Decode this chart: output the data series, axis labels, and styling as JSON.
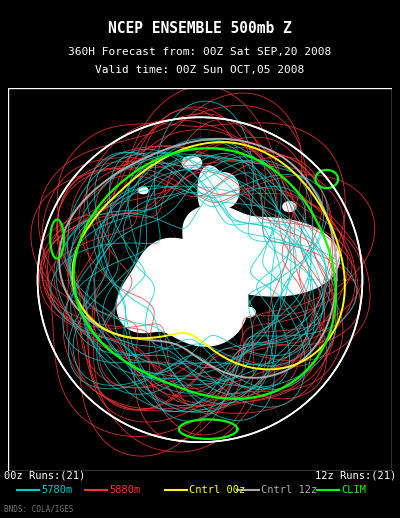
{
  "title_line1": "NCEP ENSEMBLE 500mb Z",
  "title_line2": "360H Forecast from: 00Z Sat SEP,20 2008",
  "title_line3": "Valid time: 00Z Sun OCT,05 2008",
  "footer_left": "00z Runs:(21)",
  "footer_right": "12z Runs:(21)",
  "credit": "BNDS: COLA/IGES",
  "legend_items": [
    {
      "label": "5780m",
      "color": "#00CCCC",
      "lw": 1.5
    },
    {
      "label": "5880m",
      "color": "#FF3333",
      "lw": 1.5
    },
    {
      "label": "Cntrl 00z",
      "color": "#FFFF00",
      "lw": 1.5
    },
    {
      "label": "Cntrl 12z",
      "color": "#AAAAAA",
      "lw": 1.5
    },
    {
      "label": "CLIM",
      "color": "#00FF00",
      "lw": 1.5
    }
  ],
  "bg_color": "#000000",
  "plot_bg": "#000000",
  "globe_edge_color": "#FFFFFF",
  "grid_line_color": "#444444",
  "title_color": "#FFFFFF",
  "title_fontsize": 10.5,
  "subtitle_fontsize": 8.0,
  "footer_fontsize": 7.5,
  "legend_fontsize": 7.5,
  "cyan_color": "#00CCCC",
  "red_color": "#FF3333",
  "yellow_color": "#FFFF00",
  "gray_color": "#AAAAAA",
  "green_color": "#00FF00"
}
